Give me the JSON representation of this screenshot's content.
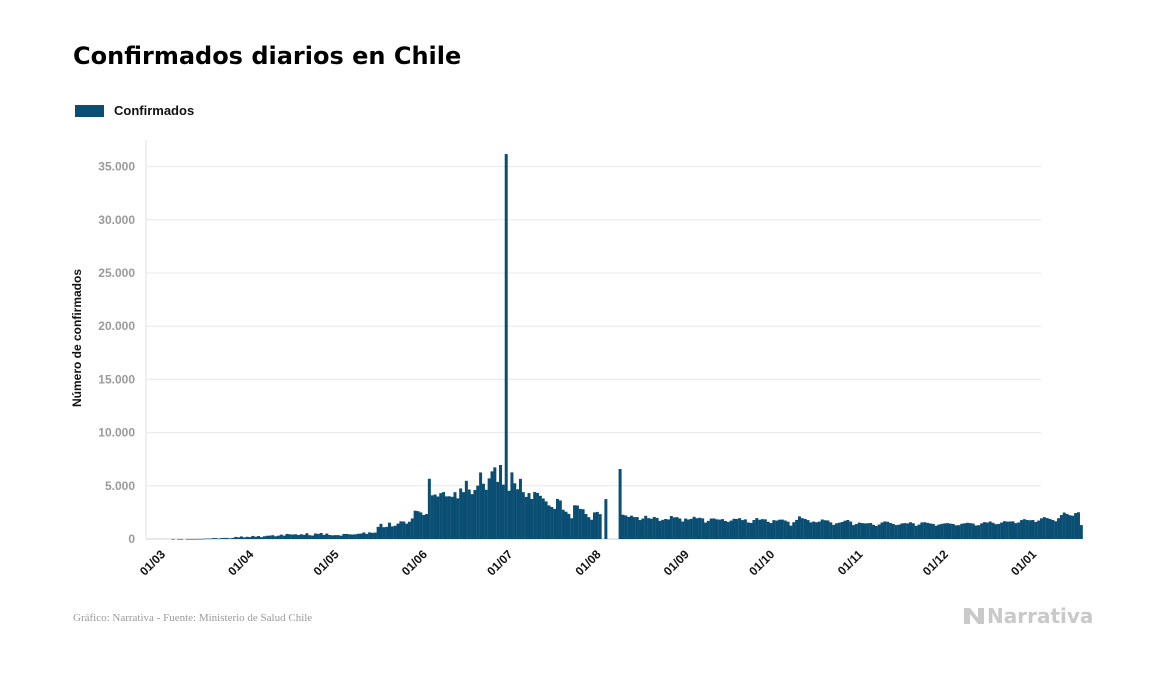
{
  "title": "Confirmados diarios en Chile",
  "legend": {
    "label": "Confirmados",
    "color": "#0a4f73"
  },
  "footer": {
    "source": "Gráfico: Narrativa - Fuente: Ministerio de Salud Chile",
    "brand": "Narrativa"
  },
  "chart_data": {
    "type": "bar",
    "title": "Confirmados diarios en Chile",
    "ylabel": "Número de confirmados",
    "xlabel": "",
    "ylim": [
      0,
      37500
    ],
    "yticks": [
      0,
      5000,
      10000,
      15000,
      20000,
      25000,
      30000,
      35000
    ],
    "ytick_labels": [
      "0",
      "5.000",
      "10.000",
      "15.000",
      "20.000",
      "25.000",
      "30.000",
      "35.000"
    ],
    "xticks": [
      "01/03",
      "01/04",
      "01/05",
      "01/06",
      "01/07",
      "01/08",
      "01/09",
      "01/10",
      "01/11",
      "01/12",
      "01/01"
    ],
    "grid": true,
    "legend_position": "top-left",
    "series": [
      {
        "name": "Confirmados",
        "color": "#0a4f73",
        "start_date": "2020-03-03",
        "values": [
          1,
          0,
          3,
          1,
          0,
          6,
          3,
          3,
          10,
          10,
          12,
          31,
          48,
          37,
          80,
          88,
          46,
          84,
          102,
          103,
          63,
          102,
          197,
          158,
          242,
          155,
          207,
          179,
          289,
          213,
          276,
          171,
          253,
          303,
          319,
          357,
          255,
          313,
          410,
          318,
          478,
          440,
          422,
          442,
          373,
          448,
          390,
          543,
          358,
          326,
          519,
          478,
          568,
          389,
          511,
          376,
          344,
          365,
          366,
          309,
          474,
          476,
          436,
          418,
          441,
          490,
          510,
          614,
          482,
          623,
          580,
          599,
          1139,
          1427,
          1107,
          1140,
          1533,
          1186,
          1246,
          1447,
          1659,
          1648,
          1446,
          1626,
          1930,
          2660,
          2618,
          2502,
          2261,
          2345,
          5659,
          4106,
          4185,
          3994,
          4309,
          4412,
          4006,
          4016,
          3965,
          4400,
          3820,
          4753,
          4401,
          5470,
          4648,
          4216,
          4610,
          5017,
          6255,
          5193,
          4630,
          5697,
          6357,
          6733,
          5372,
          6956,
          5108,
          36179,
          4537,
          6262,
          5237,
          4675,
          5652,
          4405,
          3958,
          4319,
          3764,
          4421,
          4331,
          4059,
          3810,
          3533,
          3158,
          3009,
          2828,
          3767,
          3622,
          2752,
          2566,
          2359,
          1948,
          3168,
          3151,
          2833,
          2802,
          2344,
          2051,
          1810,
          2497,
          2545,
          2334,
          0,
          3750,
          0,
          0,
          0,
          0,
          6580,
          2280,
          2217,
          2072,
          2189,
          2057,
          2066,
          1782,
          1923,
          2182,
          1960,
          1910,
          2075,
          1980,
          1706,
          1802,
          1879,
          1838,
          2159,
          2030,
          2052,
          1925,
          1646,
          1920,
          1832,
          1896,
          2088,
          1949,
          1995,
          1938,
          1542,
          1703,
          1925,
          1929,
          1848,
          1820,
          1869,
          1693,
          1610,
          1732,
          1900,
          1879,
          1960,
          1776,
          1848,
          1554,
          1512,
          1783,
          1969,
          1809,
          1868,
          1847,
          1623,
          1498,
          1772,
          1735,
          1817,
          1824,
          1739,
          1624,
          1255,
          1580,
          1793,
          2130,
          1954,
          1890,
          1777,
          1567,
          1640,
          1575,
          1637,
          1835,
          1766,
          1741,
          1567,
          1329,
          1475,
          1533,
          1597,
          1720,
          1788,
          1637,
          1308,
          1414,
          1542,
          1496,
          1467,
          1480,
          1506,
          1335,
          1227,
          1365,
          1554,
          1654,
          1618,
          1505,
          1413,
          1312,
          1351,
          1463,
          1492,
          1466,
          1571,
          1478,
          1238,
          1357,
          1560,
          1574,
          1519,
          1459,
          1421,
          1253,
          1354,
          1422,
          1470,
          1491,
          1447,
          1409,
          1284,
          1300,
          1436,
          1476,
          1524,
          1493,
          1453,
          1266,
          1302,
          1473,
          1585,
          1545,
          1646,
          1525,
          1392,
          1419,
          1544,
          1675,
          1637,
          1644,
          1660,
          1489,
          1556,
          1778,
          1864,
          1784,
          1760,
          1785,
          1605,
          1730,
          1941,
          2058,
          1966,
          1886,
          1786,
          1668,
          1954,
          2253,
          2486,
          2355,
          2231,
          2188,
          2436,
          2513,
          1308
        ]
      }
    ]
  }
}
